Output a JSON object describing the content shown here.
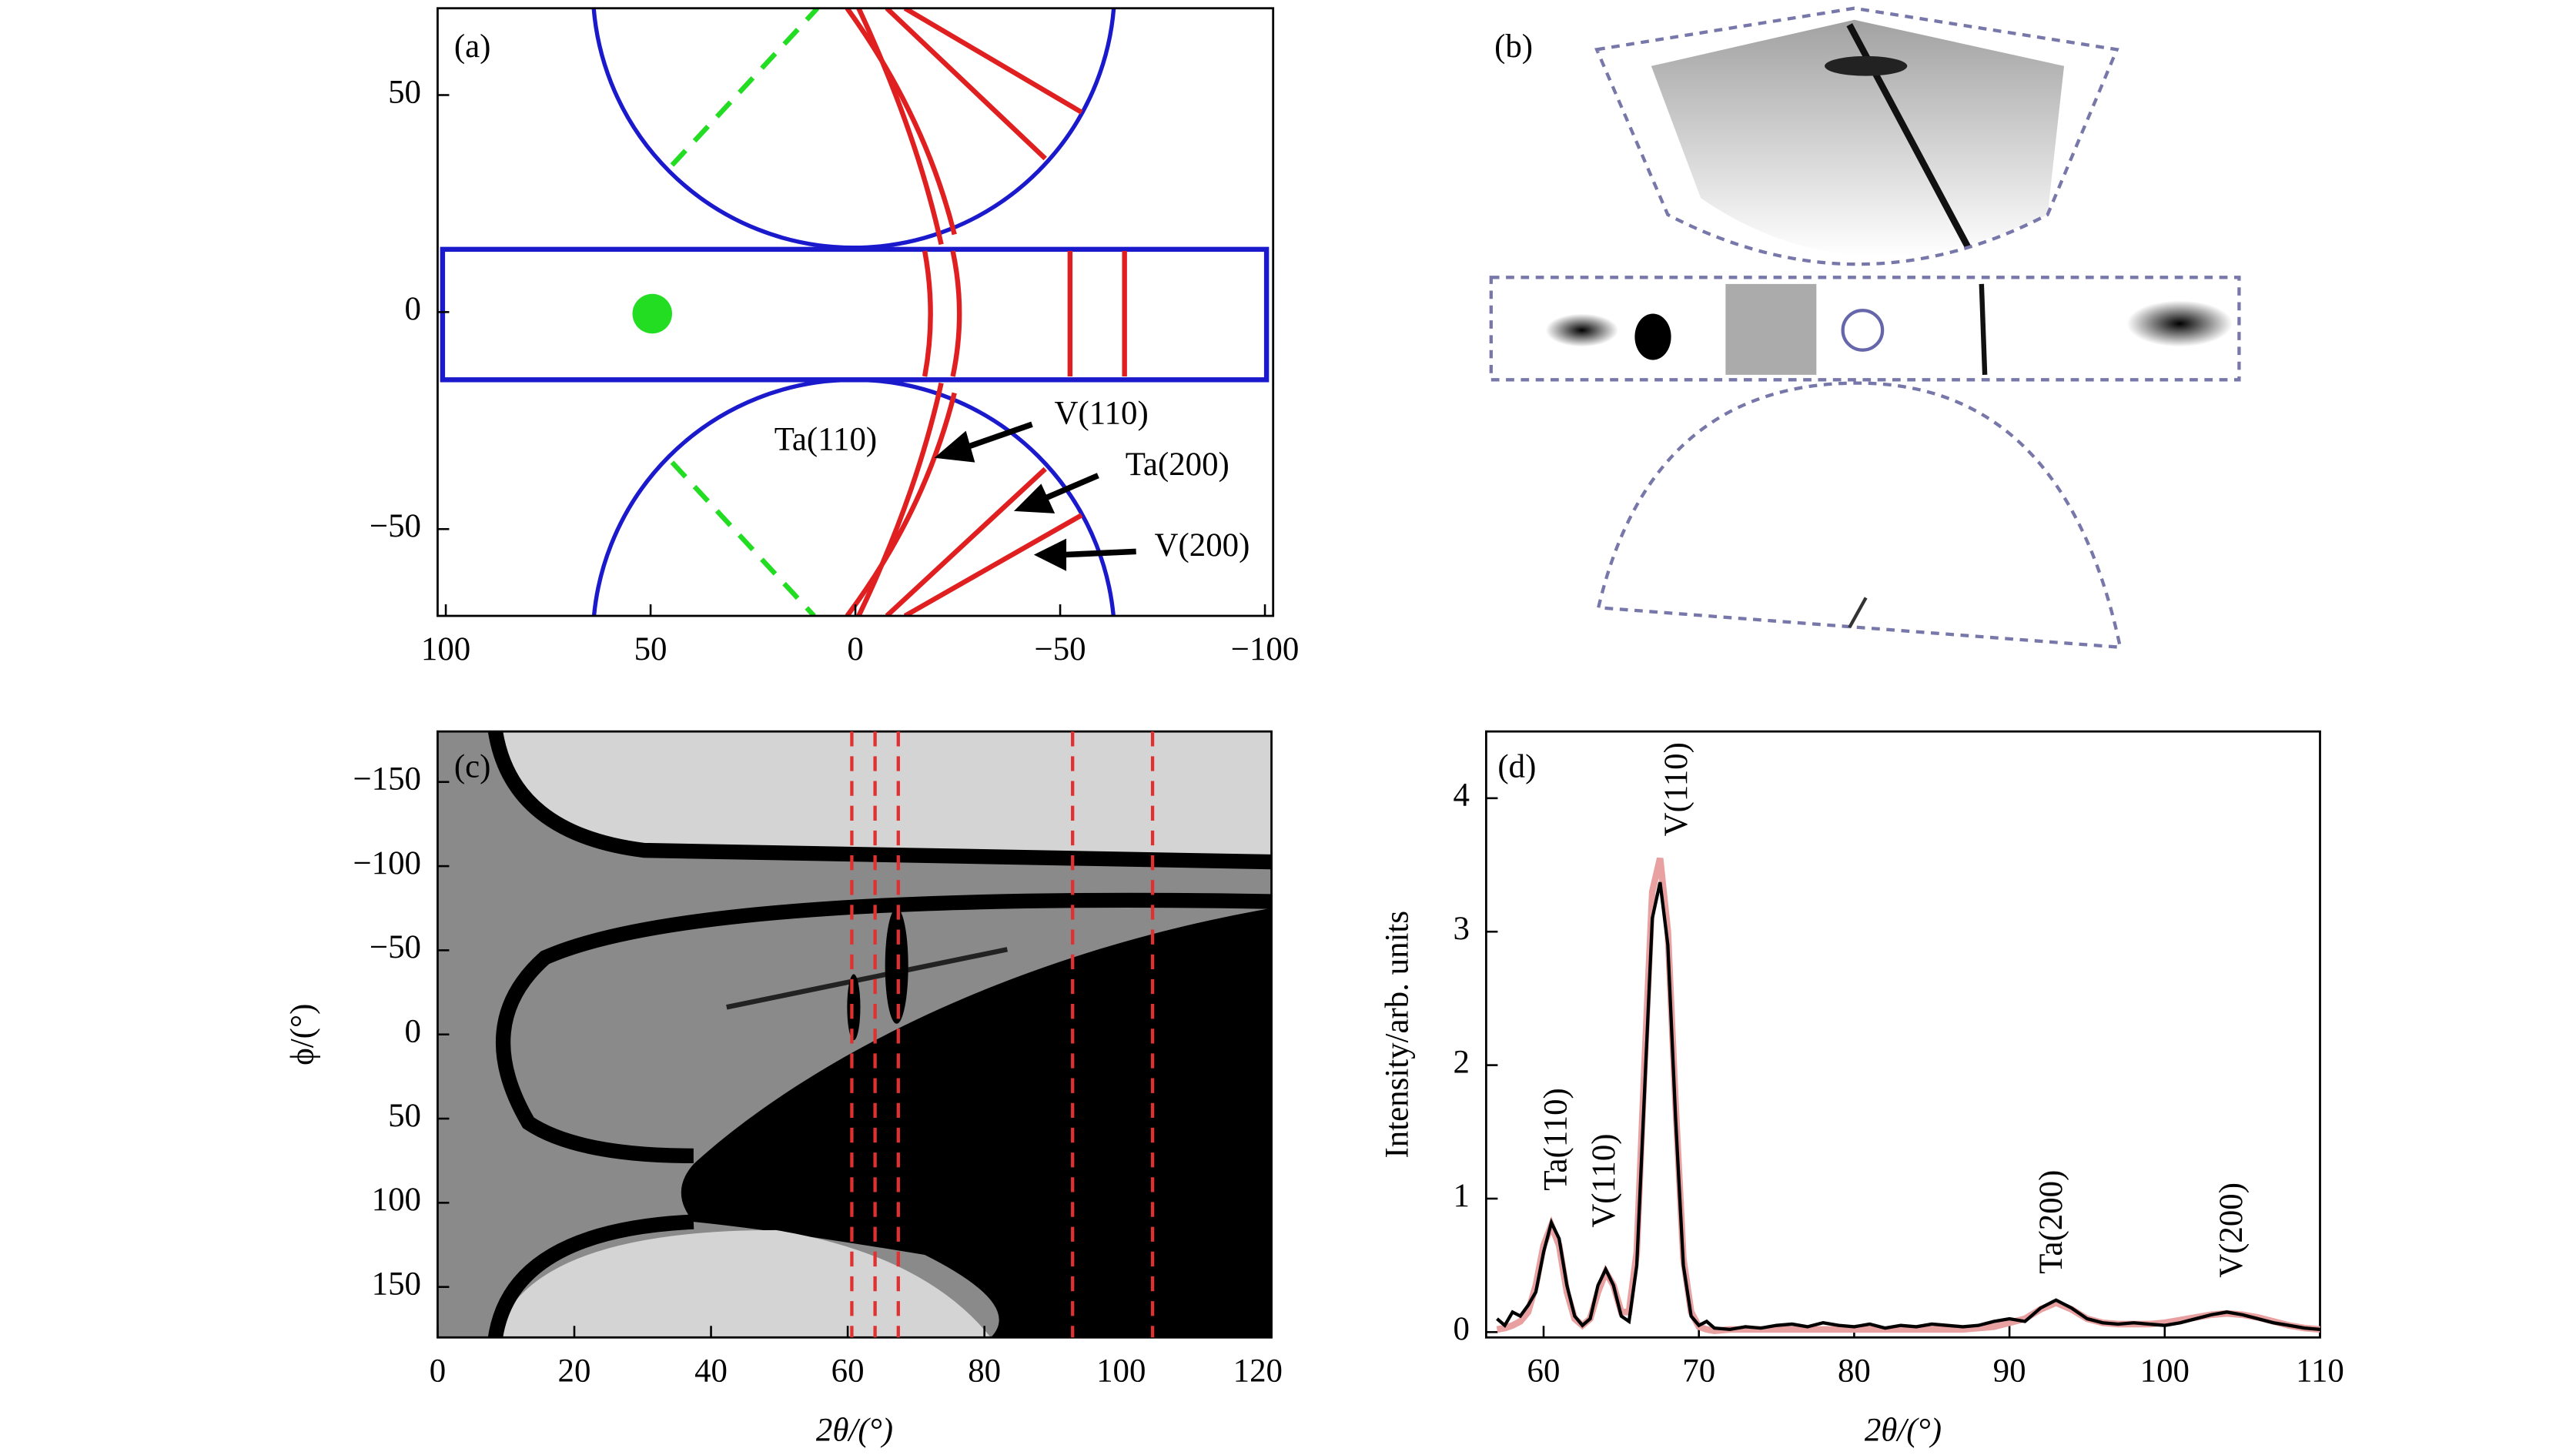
{
  "chart_data": [
    {
      "type": "diagram",
      "label": "(a)",
      "xlim": [
        102,
        -102
      ],
      "ylim": [
        -70,
        70
      ],
      "xticks": [
        100,
        50,
        0,
        {
          "value": -50,
          "label": "−50"
        },
        {
          "value": -100,
          "label": "−100"
        }
      ],
      "yticks": [
        50,
        0,
        {
          "value": -50,
          "label": "−50"
        }
      ],
      "annotations": [
        {
          "text": "Ta(110)",
          "color": "#1a1aff"
        },
        {
          "text": "V(110)",
          "color": "#1a1aff"
        },
        {
          "text": "Ta(200)",
          "color": "#1a1aff"
        },
        {
          "text": "V(200)",
          "color": "#1a1aff"
        }
      ]
    },
    {
      "type": "image",
      "label": "(b)"
    },
    {
      "type": "heatmap",
      "label": "(c)",
      "xlabel": "2θ/(°)",
      "ylabel": "ϕ/(°)",
      "xlim": [
        0,
        122
      ],
      "ylim": [
        180,
        -180
      ],
      "xticks": [
        0,
        20,
        40,
        60,
        80,
        100,
        120
      ],
      "yticks": [
        {
          "value": -150,
          "label": "−150"
        },
        {
          "value": -100,
          "label": "−100"
        },
        {
          "value": -50,
          "label": "−50"
        },
        0,
        50,
        100,
        150
      ],
      "marker_lines": [
        60.6,
        64,
        67.4,
        92.9,
        104.6
      ],
      "marker_color": "#e03030"
    },
    {
      "type": "line",
      "label": "(d)",
      "xlabel": "2θ/(°)",
      "ylabel": "Intensity/arb. units",
      "xlim": [
        56.3,
        110
      ],
      "ylim": [
        -0.04,
        4.5
      ],
      "xticks": [
        60,
        70,
        80,
        90,
        100,
        110
      ],
      "yticks": [
        0,
        1,
        2,
        3,
        4
      ],
      "x": [
        57,
        57.5,
        58,
        58.5,
        59,
        59.5,
        60,
        60.5,
        61,
        61.5,
        62,
        62.5,
        63,
        63.5,
        64,
        64.5,
        65,
        65.5,
        66,
        66.5,
        67,
        67.5,
        68,
        68.5,
        69,
        69.5,
        70,
        70.5,
        71,
        72,
        73,
        74,
        75,
        76,
        77,
        78,
        79,
        80,
        81,
        82,
        83,
        84,
        85,
        86,
        87,
        88,
        89,
        90,
        91,
        92,
        93,
        94,
        95,
        96,
        97,
        98,
        99,
        100,
        101,
        102,
        103,
        104,
        105,
        106,
        107,
        108,
        109,
        110
      ],
      "series": [
        {
          "color": "#e8a0a0",
          "values": [
            0.02,
            0.03,
            0.05,
            0.08,
            0.15,
            0.35,
            0.65,
            0.8,
            0.65,
            0.3,
            0.1,
            0.05,
            0.1,
            0.3,
            0.45,
            0.35,
            0.15,
            0.15,
            0.6,
            2.0,
            3.3,
            3.55,
            3.0,
            1.7,
            0.55,
            0.15,
            0.04,
            0.02,
            0.01,
            0.02,
            0.02,
            0.02,
            0.02,
            0.02,
            0.02,
            0.02,
            0.02,
            0.02,
            0.02,
            0.02,
            0.02,
            0.02,
            0.02,
            0.02,
            0.02,
            0.03,
            0.04,
            0.07,
            0.1,
            0.17,
            0.22,
            0.17,
            0.1,
            0.07,
            0.06,
            0.06,
            0.06,
            0.07,
            0.09,
            0.11,
            0.13,
            0.14,
            0.13,
            0.11,
            0.08,
            0.05,
            0.03,
            0.02
          ]
        },
        {
          "color": "#000000",
          "values": [
            0.1,
            0.05,
            0.15,
            0.12,
            0.2,
            0.3,
            0.6,
            0.82,
            0.7,
            0.35,
            0.12,
            0.05,
            0.1,
            0.35,
            0.47,
            0.35,
            0.12,
            0.08,
            0.5,
            1.8,
            3.1,
            3.37,
            2.9,
            1.6,
            0.5,
            0.12,
            0.05,
            0.08,
            0.03,
            0.02,
            0.04,
            0.03,
            0.05,
            0.06,
            0.04,
            0.07,
            0.05,
            0.04,
            0.06,
            0.03,
            0.05,
            0.04,
            0.06,
            0.05,
            0.04,
            0.05,
            0.08,
            0.1,
            0.08,
            0.18,
            0.24,
            0.18,
            0.1,
            0.07,
            0.06,
            0.07,
            0.06,
            0.05,
            0.07,
            0.1,
            0.13,
            0.15,
            0.13,
            0.1,
            0.07,
            0.05,
            0.03,
            0.02
          ]
        }
      ],
      "annotations": [
        {
          "text": "Ta(110)",
          "color": "#000000"
        },
        {
          "text": "V(110)",
          "color": "#1a1aff"
        },
        {
          "text": "V(110)",
          "color": "#000000"
        },
        {
          "text": "Ta(200)",
          "color": "#000000"
        },
        {
          "text": "V(200)",
          "color": "#000000"
        }
      ]
    }
  ]
}
